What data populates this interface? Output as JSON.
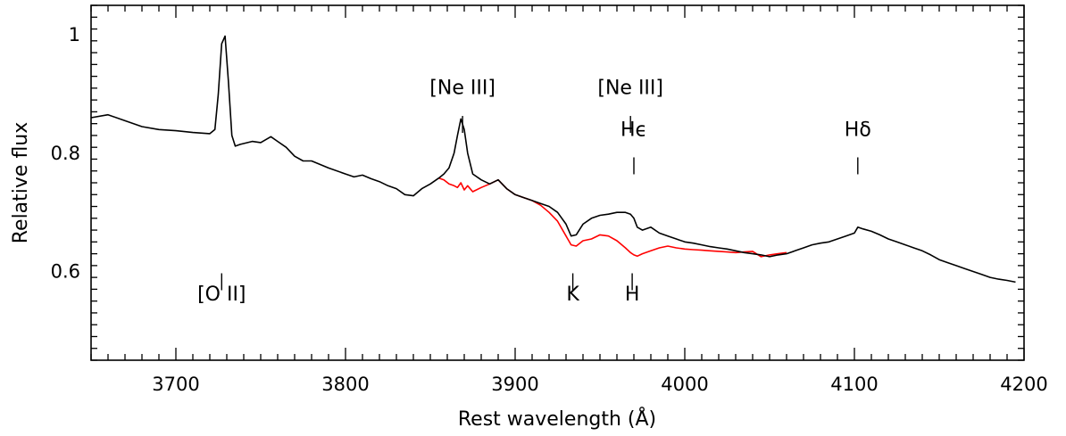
{
  "chart_data": {
    "type": "line",
    "xlabel": "Rest wavelength (Å)",
    "ylabel": "Relative flux",
    "xlim": [
      3650,
      4200
    ],
    "ylim": [
      0.45,
      1.05
    ],
    "x_ticks": [
      3700,
      3800,
      3900,
      4000,
      4100,
      4200
    ],
    "x_tick_labels": [
      "3700",
      "3800",
      "3900",
      "4000",
      "4100",
      "4200"
    ],
    "y_ticks": [
      0.6,
      0.8,
      1.0
    ],
    "y_tick_labels": [
      "0.6",
      "0.8",
      "1"
    ],
    "grid": false,
    "series": [
      {
        "color": "#000000",
        "x": [
          3650,
          3660,
          3670,
          3680,
          3690,
          3700,
          3710,
          3720,
          3723,
          3725,
          3727,
          3729,
          3731,
          3733,
          3735,
          3738,
          3745,
          3750,
          3756,
          3760,
          3765,
          3770,
          3775,
          3780,
          3790,
          3800,
          3805,
          3810,
          3815,
          3820,
          3825,
          3830,
          3835,
          3840,
          3845,
          3850,
          3855,
          3858,
          3861,
          3864,
          3866,
          3868,
          3870,
          3872,
          3875,
          3880,
          3885,
          3890,
          3895,
          3900,
          3905,
          3910,
          3915,
          3920,
          3925,
          3930,
          3933,
          3936,
          3940,
          3945,
          3950,
          3955,
          3960,
          3965,
          3968,
          3970,
          3972,
          3975,
          3980,
          3985,
          3990,
          3995,
          4000,
          4005,
          4010,
          4015,
          4020,
          4025,
          4030,
          4035,
          4040,
          4045,
          4050,
          4055,
          4060,
          4065,
          4070,
          4075,
          4080,
          4085,
          4090,
          4095,
          4100,
          4102,
          4105,
          4110,
          4115,
          4120,
          4125,
          4130,
          4135,
          4140,
          4145,
          4150,
          4155,
          4160,
          4165,
          4170,
          4175,
          4180,
          4185,
          4190,
          4195
        ],
        "y": [
          0.86,
          0.865,
          0.855,
          0.845,
          0.84,
          0.838,
          0.835,
          0.833,
          0.84,
          0.9,
          0.985,
          0.998,
          0.92,
          0.83,
          0.812,
          0.815,
          0.82,
          0.818,
          0.828,
          0.82,
          0.81,
          0.795,
          0.787,
          0.787,
          0.775,
          0.765,
          0.76,
          0.763,
          0.757,
          0.752,
          0.745,
          0.74,
          0.73,
          0.728,
          0.74,
          0.748,
          0.758,
          0.765,
          0.775,
          0.8,
          0.83,
          0.858,
          0.84,
          0.8,
          0.765,
          0.755,
          0.748,
          0.755,
          0.74,
          0.73,
          0.725,
          0.72,
          0.715,
          0.71,
          0.7,
          0.68,
          0.66,
          0.662,
          0.68,
          0.69,
          0.695,
          0.697,
          0.7,
          0.7,
          0.697,
          0.69,
          0.675,
          0.67,
          0.675,
          0.665,
          0.66,
          0.655,
          0.65,
          0.648,
          0.645,
          0.642,
          0.64,
          0.638,
          0.635,
          0.632,
          0.63,
          0.628,
          0.625,
          0.628,
          0.63,
          0.635,
          0.64,
          0.645,
          0.648,
          0.65,
          0.655,
          0.66,
          0.665,
          0.675,
          0.672,
          0.668,
          0.662,
          0.655,
          0.65,
          0.645,
          0.64,
          0.635,
          0.628,
          0.62,
          0.615,
          0.61,
          0.605,
          0.6,
          0.595,
          0.59,
          0.587,
          0.585,
          0.582
        ]
      },
      {
        "color": "#ff0000",
        "x": [
          3855,
          3858,
          3861,
          3864,
          3866,
          3868,
          3870,
          3872,
          3875,
          3880,
          3885,
          3890,
          3895,
          3900,
          3905,
          3910,
          3915,
          3920,
          3925,
          3930,
          3933,
          3936,
          3940,
          3945,
          3950,
          3955,
          3960,
          3965,
          3968,
          3970,
          3972,
          3975,
          3980,
          3985,
          3990,
          3995,
          4000,
          4005,
          4010,
          4015,
          4020,
          4025,
          4030,
          4035,
          4040,
          4045,
          4050,
          4055,
          4060
        ],
        "y": [
          0.758,
          0.755,
          0.748,
          0.745,
          0.742,
          0.75,
          0.738,
          0.745,
          0.735,
          0.742,
          0.748,
          0.755,
          0.74,
          0.73,
          0.725,
          0.72,
          0.712,
          0.7,
          0.685,
          0.66,
          0.645,
          0.643,
          0.652,
          0.655,
          0.662,
          0.66,
          0.652,
          0.64,
          0.632,
          0.628,
          0.626,
          0.63,
          0.635,
          0.64,
          0.643,
          0.64,
          0.638,
          0.637,
          0.636,
          0.635,
          0.634,
          0.633,
          0.632,
          0.633,
          0.634,
          0.625,
          0.628,
          0.63,
          0.632
        ]
      }
    ],
    "annotations_top": [
      {
        "text": "[Ne III]",
        "x": 3869,
        "tick_flux": 0.863,
        "label_flux": 0.9
      },
      {
        "text": "[Ne III]",
        "x": 3968,
        "tick_flux": 0.863,
        "label_flux": 0.9
      },
      {
        "text": "Hϵ",
        "x": 3970,
        "tick_flux": 0.793,
        "label_flux": 0.829
      },
      {
        "text": "Hδ",
        "x": 4102,
        "tick_flux": 0.793,
        "label_flux": 0.829
      }
    ],
    "annotations_bottom": [
      {
        "text": "[O II]",
        "x": 3727,
        "tick_flux": 0.597,
        "label_flux": 0.551
      },
      {
        "text": "K",
        "x": 3934,
        "tick_flux": 0.597,
        "label_flux": 0.551
      },
      {
        "text": "H",
        "x": 3969,
        "tick_flux": 0.597,
        "label_flux": 0.551
      }
    ]
  }
}
